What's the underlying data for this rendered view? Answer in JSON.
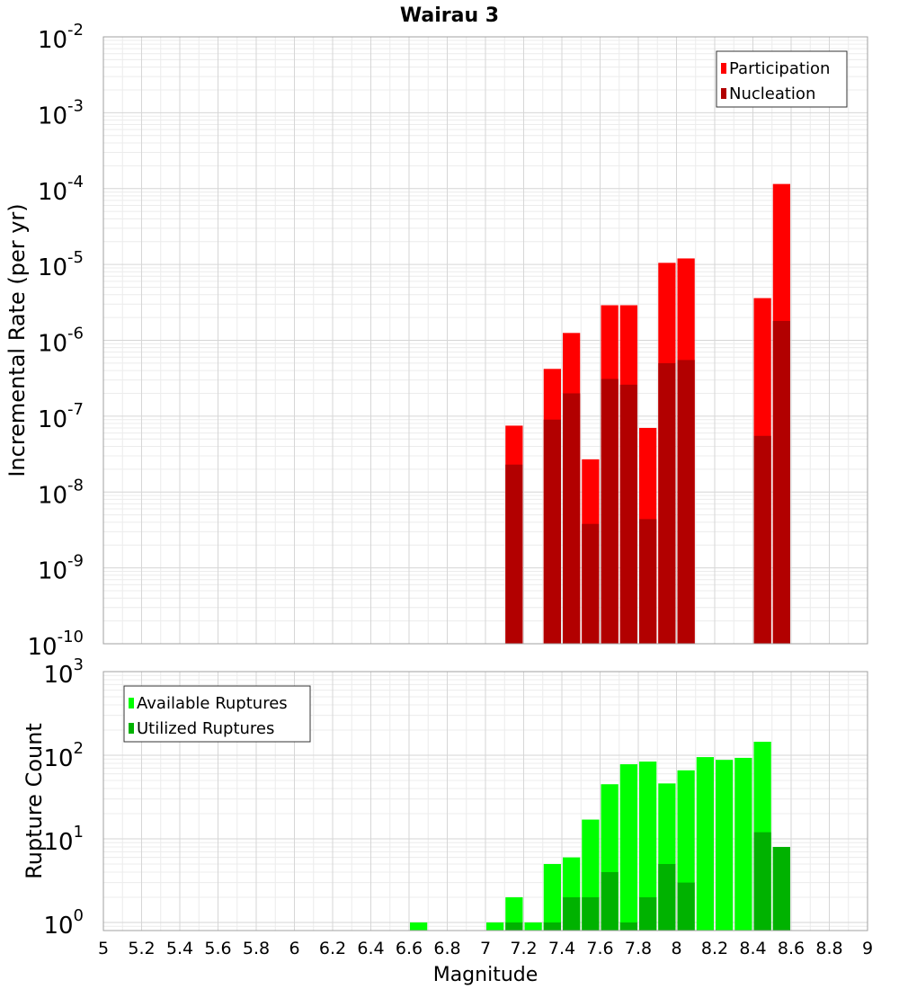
{
  "title": "Wairau 3",
  "chart_data": [
    {
      "type": "bar",
      "ylabel": "Incremental Rate (per yr)",
      "yscale": "log",
      "ylim": [
        1e-10,
        0.01
      ],
      "xlim": [
        5,
        9
      ],
      "y_ticks": [
        {
          "base": "10",
          "exp": "-10"
        },
        {
          "base": "10",
          "exp": "-9"
        },
        {
          "base": "10",
          "exp": "-8"
        },
        {
          "base": "10",
          "exp": "-7"
        },
        {
          "base": "10",
          "exp": "-6"
        },
        {
          "base": "10",
          "exp": "-5"
        },
        {
          "base": "10",
          "exp": "-4"
        },
        {
          "base": "10",
          "exp": "-3"
        },
        {
          "base": "10",
          "exp": "-2"
        }
      ],
      "grid": true,
      "legend_position": "top-right",
      "bar_width": 0.1,
      "series": [
        {
          "name": "Participation",
          "color": "#ff0000",
          "points": [
            {
              "x": 7.15,
              "y": 7.5e-08
            },
            {
              "x": 7.35,
              "y": 4.2e-07
            },
            {
              "x": 7.45,
              "y": 1.25e-06
            },
            {
              "x": 7.55,
              "y": 2.7e-08
            },
            {
              "x": 7.65,
              "y": 2.9e-06
            },
            {
              "x": 7.75,
              "y": 2.9e-06
            },
            {
              "x": 7.85,
              "y": 7e-08
            },
            {
              "x": 7.95,
              "y": 1.05e-05
            },
            {
              "x": 8.05,
              "y": 1.2e-05
            },
            {
              "x": 8.45,
              "y": 3.6e-06
            },
            {
              "x": 8.55,
              "y": 0.000115
            }
          ]
        },
        {
          "name": "Nucleation",
          "color": "#b20000",
          "points": [
            {
              "x": 7.15,
              "y": 2.3e-08
            },
            {
              "x": 7.35,
              "y": 9e-08
            },
            {
              "x": 7.45,
              "y": 2e-07
            },
            {
              "x": 7.55,
              "y": 3.8e-09
            },
            {
              "x": 7.65,
              "y": 3.1e-07
            },
            {
              "x": 7.75,
              "y": 2.6e-07
            },
            {
              "x": 7.85,
              "y": 4.4e-09
            },
            {
              "x": 7.95,
              "y": 5e-07
            },
            {
              "x": 8.05,
              "y": 5.5e-07
            },
            {
              "x": 8.45,
              "y": 5.5e-08
            },
            {
              "x": 8.55,
              "y": 1.8e-06
            }
          ]
        }
      ]
    },
    {
      "type": "bar",
      "xlabel": "Magnitude",
      "ylabel": "Rupture Count",
      "yscale": "log",
      "ylim": [
        0.8,
        1000
      ],
      "xlim": [
        5,
        9
      ],
      "x_ticks": [
        "5",
        "5.2",
        "5.4",
        "5.6",
        "5.8",
        "6",
        "6.2",
        "6.4",
        "6.6",
        "6.8",
        "7",
        "7.2",
        "7.4",
        "7.6",
        "7.8",
        "8",
        "8.2",
        "8.4",
        "8.6",
        "8.8",
        "9"
      ],
      "y_ticks": [
        {
          "base": "10",
          "exp": "0"
        },
        {
          "base": "10",
          "exp": "1"
        },
        {
          "base": "10",
          "exp": "2"
        },
        {
          "base": "10",
          "exp": "3"
        }
      ],
      "grid": true,
      "legend_position": "top-left",
      "bar_width": 0.1,
      "series": [
        {
          "name": "Available Ruptures",
          "color": "#00ff00",
          "points": [
            {
              "x": 6.65,
              "y": 1
            },
            {
              "x": 7.05,
              "y": 1
            },
            {
              "x": 7.15,
              "y": 2
            },
            {
              "x": 7.25,
              "y": 1
            },
            {
              "x": 7.35,
              "y": 5
            },
            {
              "x": 7.45,
              "y": 6
            },
            {
              "x": 7.55,
              "y": 17
            },
            {
              "x": 7.65,
              "y": 45
            },
            {
              "x": 7.75,
              "y": 78
            },
            {
              "x": 7.85,
              "y": 84
            },
            {
              "x": 7.95,
              "y": 46
            },
            {
              "x": 8.05,
              "y": 66
            },
            {
              "x": 8.15,
              "y": 95
            },
            {
              "x": 8.25,
              "y": 88
            },
            {
              "x": 8.35,
              "y": 93
            },
            {
              "x": 8.45,
              "y": 145
            },
            {
              "x": 8.55,
              "y": 8
            }
          ]
        },
        {
          "name": "Utilized Ruptures",
          "color": "#00b200",
          "points": [
            {
              "x": 7.15,
              "y": 1
            },
            {
              "x": 7.35,
              "y": 1
            },
            {
              "x": 7.45,
              "y": 2
            },
            {
              "x": 7.55,
              "y": 2
            },
            {
              "x": 7.65,
              "y": 4
            },
            {
              "x": 7.75,
              "y": 1
            },
            {
              "x": 7.85,
              "y": 2
            },
            {
              "x": 7.95,
              "y": 5
            },
            {
              "x": 8.05,
              "y": 3
            },
            {
              "x": 8.45,
              "y": 12
            },
            {
              "x": 8.55,
              "y": 8
            }
          ]
        }
      ]
    }
  ]
}
